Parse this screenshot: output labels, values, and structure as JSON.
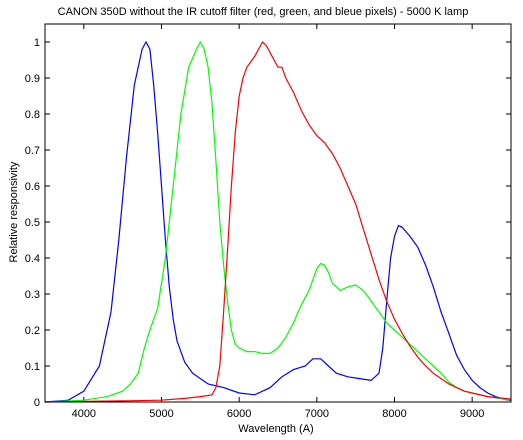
{
  "chart_data": {
    "type": "line",
    "title": "CANON 350D without the IR cutoff filter (red, green, and bleue pixels) - 5000 K lamp",
    "xlabel": "Wavelength (A)",
    "ylabel": "Relative responsivity",
    "xlim": [
      3500,
      9500
    ],
    "ylim": [
      0,
      1.05
    ],
    "xticks": [
      4000,
      5000,
      6000,
      7000,
      8000,
      9000
    ],
    "yticks": [
      0,
      0.1,
      0.2,
      0.3,
      0.4,
      0.5,
      0.6,
      0.7,
      0.8,
      0.9,
      1
    ],
    "ytick_labels": [
      "0",
      "0.1",
      "0.2",
      "0.3",
      "0.4",
      "0.5",
      "0.6",
      "0.7",
      "0.8",
      "0.9",
      "1"
    ],
    "grid": false,
    "series": [
      {
        "color": "#0000ff",
        "points": [
          [
            3500,
            0
          ],
          [
            3800,
            0.005
          ],
          [
            4000,
            0.03
          ],
          [
            4200,
            0.1
          ],
          [
            4350,
            0.25
          ],
          [
            4450,
            0.45
          ],
          [
            4550,
            0.68
          ],
          [
            4650,
            0.88
          ],
          [
            4750,
            0.98
          ],
          [
            4800,
            1.0
          ],
          [
            4850,
            0.98
          ],
          [
            4900,
            0.88
          ],
          [
            4950,
            0.75
          ],
          [
            5000,
            0.6
          ],
          [
            5050,
            0.45
          ],
          [
            5100,
            0.32
          ],
          [
            5150,
            0.23
          ],
          [
            5200,
            0.17
          ],
          [
            5300,
            0.11
          ],
          [
            5400,
            0.08
          ],
          [
            5600,
            0.05
          ],
          [
            5800,
            0.04
          ],
          [
            6000,
            0.025
          ],
          [
            6200,
            0.02
          ],
          [
            6400,
            0.04
          ],
          [
            6550,
            0.07
          ],
          [
            6700,
            0.09
          ],
          [
            6850,
            0.1
          ],
          [
            6950,
            0.12
          ],
          [
            7050,
            0.12
          ],
          [
            7150,
            0.1
          ],
          [
            7250,
            0.08
          ],
          [
            7400,
            0.07
          ],
          [
            7550,
            0.065
          ],
          [
            7700,
            0.06
          ],
          [
            7800,
            0.08
          ],
          [
            7850,
            0.15
          ],
          [
            7900,
            0.28
          ],
          [
            7950,
            0.4
          ],
          [
            8000,
            0.46
          ],
          [
            8050,
            0.49
          ],
          [
            8100,
            0.485
          ],
          [
            8200,
            0.46
          ],
          [
            8300,
            0.43
          ],
          [
            8400,
            0.38
          ],
          [
            8500,
            0.32
          ],
          [
            8600,
            0.25
          ],
          [
            8700,
            0.19
          ],
          [
            8800,
            0.13
          ],
          [
            8900,
            0.09
          ],
          [
            9000,
            0.06
          ],
          [
            9100,
            0.04
          ],
          [
            9200,
            0.025
          ],
          [
            9300,
            0.015
          ],
          [
            9400,
            0.008
          ],
          [
            9500,
            0.004
          ]
        ]
      },
      {
        "color": "#00ff00",
        "points": [
          [
            3500,
            0
          ],
          [
            4000,
            0.005
          ],
          [
            4300,
            0.015
          ],
          [
            4500,
            0.03
          ],
          [
            4600,
            0.05
          ],
          [
            4700,
            0.08
          ],
          [
            4780,
            0.15
          ],
          [
            4850,
            0.2
          ],
          [
            4950,
            0.26
          ],
          [
            5050,
            0.4
          ],
          [
            5150,
            0.6
          ],
          [
            5250,
            0.8
          ],
          [
            5350,
            0.93
          ],
          [
            5450,
            0.98
          ],
          [
            5500,
            1.0
          ],
          [
            5550,
            0.98
          ],
          [
            5600,
            0.93
          ],
          [
            5650,
            0.83
          ],
          [
            5700,
            0.67
          ],
          [
            5750,
            0.5
          ],
          [
            5800,
            0.38
          ],
          [
            5850,
            0.28
          ],
          [
            5900,
            0.2
          ],
          [
            5950,
            0.16
          ],
          [
            6000,
            0.15
          ],
          [
            6100,
            0.14
          ],
          [
            6200,
            0.14
          ],
          [
            6300,
            0.135
          ],
          [
            6400,
            0.135
          ],
          [
            6500,
            0.15
          ],
          [
            6600,
            0.18
          ],
          [
            6700,
            0.22
          ],
          [
            6800,
            0.27
          ],
          [
            6900,
            0.31
          ],
          [
            6950,
            0.34
          ],
          [
            7000,
            0.37
          ],
          [
            7050,
            0.385
          ],
          [
            7100,
            0.38
          ],
          [
            7150,
            0.36
          ],
          [
            7200,
            0.33
          ],
          [
            7300,
            0.31
          ],
          [
            7400,
            0.32
          ],
          [
            7500,
            0.325
          ],
          [
            7600,
            0.31
          ],
          [
            7700,
            0.28
          ],
          [
            7800,
            0.25
          ],
          [
            7900,
            0.22
          ],
          [
            8000,
            0.2
          ],
          [
            8100,
            0.18
          ],
          [
            8200,
            0.16
          ],
          [
            8300,
            0.14
          ],
          [
            8400,
            0.12
          ],
          [
            8500,
            0.1
          ],
          [
            8600,
            0.08
          ],
          [
            8700,
            0.055
          ],
          [
            8800,
            0.04
          ],
          [
            8900,
            0.03
          ],
          [
            9000,
            0.025
          ],
          [
            9200,
            0.015
          ],
          [
            9500,
            0.005
          ]
        ]
      },
      {
        "color": "#ff0000",
        "points": [
          [
            3500,
            0
          ],
          [
            4500,
            0.003
          ],
          [
            5000,
            0.005
          ],
          [
            5300,
            0.01
          ],
          [
            5500,
            0.015
          ],
          [
            5650,
            0.02
          ],
          [
            5700,
            0.04
          ],
          [
            5750,
            0.1
          ],
          [
            5800,
            0.25
          ],
          [
            5850,
            0.42
          ],
          [
            5900,
            0.6
          ],
          [
            5950,
            0.75
          ],
          [
            6000,
            0.85
          ],
          [
            6050,
            0.9
          ],
          [
            6100,
            0.93
          ],
          [
            6200,
            0.96
          ],
          [
            6300,
            1.0
          ],
          [
            6350,
            0.99
          ],
          [
            6400,
            0.97
          ],
          [
            6500,
            0.93
          ],
          [
            6550,
            0.93
          ],
          [
            6600,
            0.9
          ],
          [
            6700,
            0.86
          ],
          [
            6800,
            0.81
          ],
          [
            6900,
            0.77
          ],
          [
            7000,
            0.74
          ],
          [
            7100,
            0.72
          ],
          [
            7200,
            0.69
          ],
          [
            7300,
            0.65
          ],
          [
            7400,
            0.6
          ],
          [
            7500,
            0.55
          ],
          [
            7600,
            0.48
          ],
          [
            7700,
            0.41
          ],
          [
            7800,
            0.34
          ],
          [
            7900,
            0.28
          ],
          [
            8000,
            0.23
          ],
          [
            8100,
            0.19
          ],
          [
            8200,
            0.155
          ],
          [
            8300,
            0.125
          ],
          [
            8400,
            0.1
          ],
          [
            8500,
            0.08
          ],
          [
            8600,
            0.065
          ],
          [
            8700,
            0.05
          ],
          [
            8800,
            0.04
          ],
          [
            8900,
            0.03
          ],
          [
            9000,
            0.025
          ],
          [
            9200,
            0.015
          ],
          [
            9500,
            0.008
          ]
        ]
      }
    ]
  }
}
